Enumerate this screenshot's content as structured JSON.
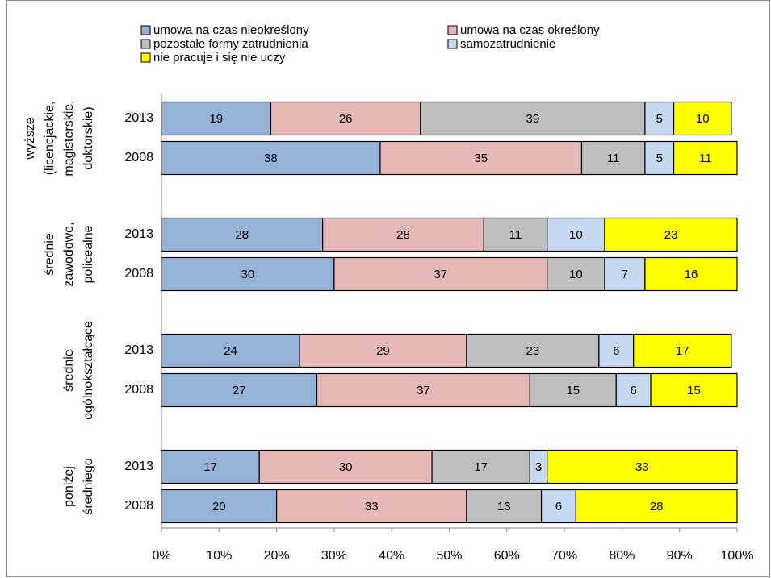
{
  "chart_data": {
    "type": "bar",
    "orientation": "horizontal",
    "stacked": true,
    "categories": [
      "2013",
      "2008",
      "2013",
      "2008",
      "2013",
      "2008",
      "2013",
      "2008"
    ],
    "groups": [
      {
        "lines": [
          "wyższe",
          "(licencjackie,",
          "magisterskie,",
          "doktorskie)"
        ]
      },
      {
        "lines": [
          "średnie",
          "zawodowe,",
          "policealne"
        ]
      },
      {
        "lines": [
          "średnie",
          "ogólnokształcące"
        ]
      },
      {
        "lines": [
          "poniżej",
          "średniego"
        ]
      }
    ],
    "series": [
      {
        "name": "umowa na czas nieokreślony",
        "color": "#95b3d7",
        "values": [
          19,
          38,
          28,
          30,
          24,
          27,
          17,
          20
        ]
      },
      {
        "name": "umowa na czas określony",
        "color": "#e6b9b8",
        "values": [
          26,
          35,
          28,
          37,
          29,
          37,
          30,
          33
        ]
      },
      {
        "name": "pozostałe formy zatrudnienia",
        "color": "#bfbfbf",
        "values": [
          39,
          11,
          11,
          10,
          23,
          15,
          17,
          13
        ]
      },
      {
        "name": "samozatrudnienie",
        "color": "#c6d9f1",
        "values": [
          5,
          5,
          10,
          7,
          6,
          6,
          3,
          6
        ]
      },
      {
        "name": "nie pracuje i się nie uczy",
        "color": "#ffff00",
        "values": [
          10,
          11,
          23,
          16,
          17,
          15,
          33,
          28
        ]
      }
    ],
    "xlim": [
      0,
      100
    ],
    "xticks": [
      {
        "value": 0,
        "label": "0%"
      },
      {
        "value": 10,
        "label": "10%"
      },
      {
        "value": 20,
        "label": "20%"
      },
      {
        "value": 30,
        "label": "30%"
      },
      {
        "value": 40,
        "label": "40%"
      },
      {
        "value": 50,
        "label": "50%"
      },
      {
        "value": 60,
        "label": "60%"
      },
      {
        "value": 70,
        "label": "70%"
      },
      {
        "value": 80,
        "label": "80%"
      },
      {
        "value": 90,
        "label": "90%"
      },
      {
        "value": 100,
        "label": "100%"
      }
    ],
    "legend": "top"
  }
}
